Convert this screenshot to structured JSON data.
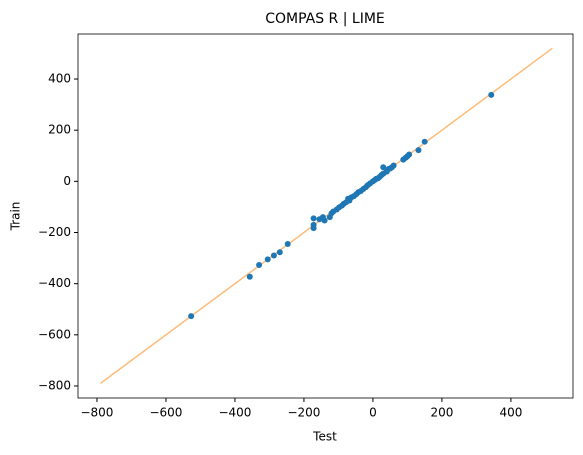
{
  "chart_data": {
    "type": "scatter",
    "title": "COMPAS R | LIME",
    "x_label": "Test",
    "y_label": "Train",
    "xlim": [
      -855,
      580
    ],
    "ylim": [
      -847,
      576
    ],
    "xticks": [
      {
        "value": -800,
        "label": "−800"
      },
      {
        "value": -600,
        "label": "−600"
      },
      {
        "value": -400,
        "label": "−400"
      },
      {
        "value": -200,
        "label": "−200"
      },
      0,
      200,
      400
    ],
    "yticks": [
      {
        "value": -800,
        "label": "−800"
      },
      {
        "value": -600,
        "label": "−600"
      },
      {
        "value": -400,
        "label": "−400"
      },
      {
        "value": -200,
        "label": "−200"
      },
      0,
      200,
      400
    ],
    "series": [
      {
        "type": "line",
        "color": "#ffbb78",
        "x": [
          -790,
          520
        ],
        "values": [
          -790,
          520
        ]
      },
      {
        "type": "scatter",
        "color": "#1f77b4",
        "x": [
          -527,
          -357,
          -330,
          -305,
          -287,
          -270,
          -247,
          -172,
          -172,
          -172,
          -155,
          -145,
          -140,
          -125,
          -120,
          -115,
          -105,
          -98,
          -90,
          -85,
          -78,
          -72,
          -68,
          -62,
          -55,
          -48,
          -42,
          -35,
          -28,
          -20,
          -15,
          -8,
          0,
          5,
          10,
          15,
          20,
          25,
          30,
          30,
          40,
          45,
          50,
          55,
          60,
          88,
          95,
          100,
          105,
          132,
          150,
          343
        ],
        "values": [
          -527,
          -373,
          -327,
          -305,
          -290,
          -277,
          -245,
          -145,
          -170,
          -183,
          -148,
          -140,
          -153,
          -140,
          -125,
          -118,
          -110,
          -102,
          -95,
          -88,
          -82,
          -68,
          -75,
          -62,
          -58,
          -50,
          -42,
          -38,
          -30,
          -22,
          -15,
          -8,
          0,
          5,
          10,
          12,
          18,
          25,
          55,
          30,
          38,
          48,
          50,
          55,
          62,
          85,
          92,
          98,
          105,
          122,
          155,
          338
        ]
      }
    ]
  }
}
